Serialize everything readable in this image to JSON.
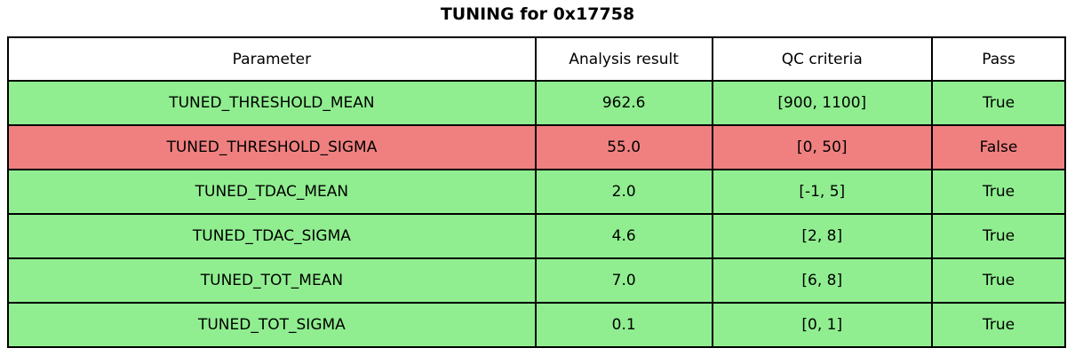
{
  "title": "TUNING for 0x17758",
  "chart_data": {
    "type": "table",
    "title": "TUNING for 0x17758",
    "columns": [
      "Parameter",
      "Analysis result",
      "QC criteria",
      "Pass"
    ],
    "rows": [
      [
        "TUNED_THRESHOLD_MEAN",
        "962.6",
        "[900, 1100]",
        "True"
      ],
      [
        "TUNED_THRESHOLD_SIGMA",
        "55.0",
        "[0, 50]",
        "False"
      ],
      [
        "TUNED_TDAC_MEAN",
        "2.0",
        "[-1, 5]",
        "True"
      ],
      [
        "TUNED_TDAC_SIGMA",
        "4.6",
        "[2, 8]",
        "True"
      ],
      [
        "TUNED_TOT_MEAN",
        "7.0",
        "[6, 8]",
        "True"
      ],
      [
        "TUNED_TOT_SIGMA",
        "0.1",
        "[0, 1]",
        "True"
      ]
    ],
    "row_status": [
      "pass",
      "fail",
      "pass",
      "pass",
      "pass",
      "pass"
    ]
  },
  "colors": {
    "pass_row": "#90EE90",
    "fail_row": "#F08080",
    "header_bg": "#FFFFFF",
    "border": "#000000",
    "text": "#000000"
  }
}
